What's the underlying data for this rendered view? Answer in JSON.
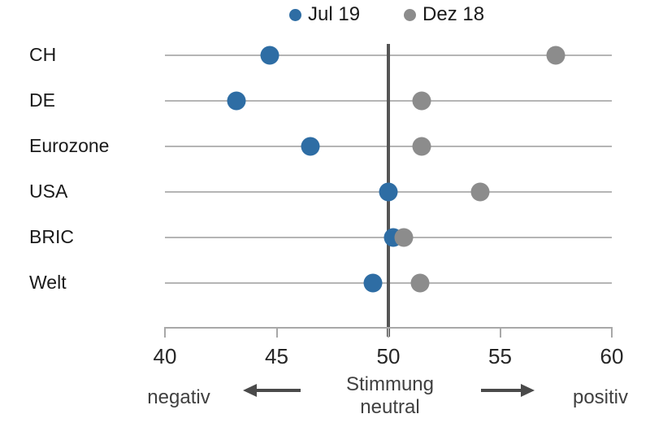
{
  "chart_data": {
    "type": "scatter",
    "title": "",
    "xlabel": "",
    "ylabel": "",
    "categories": [
      "CH",
      "DE",
      "Eurozone",
      "USA",
      "BRIC",
      "Welt"
    ],
    "series": [
      {
        "name": "Jul 19",
        "color": "#2e6da4",
        "values": [
          44.7,
          43.2,
          46.5,
          50.0,
          50.2,
          49.3
        ]
      },
      {
        "name": "Dez 18",
        "color": "#8c8c8c",
        "values": [
          57.5,
          51.5,
          51.5,
          54.1,
          50.7,
          51.4
        ]
      }
    ],
    "xlim": [
      40,
      60
    ],
    "x_ticks": [
      40,
      45,
      50,
      55,
      60
    ],
    "reference_line": {
      "value": 50,
      "color": "#555555"
    },
    "grid": "horizontal",
    "legend_position": "top",
    "annotations": {
      "negative_label": "negativ",
      "positive_label": "positiv",
      "neutral_label_line1": "Stimmung",
      "neutral_label_line2": "neutral"
    }
  }
}
